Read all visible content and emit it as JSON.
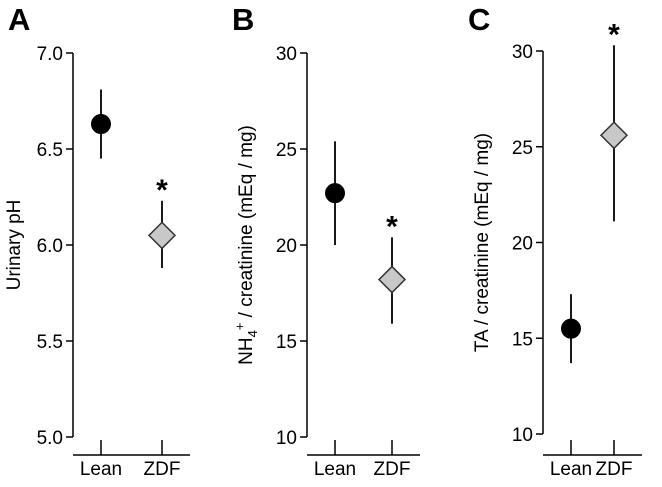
{
  "chart_data": [
    {
      "type": "scatter",
      "panel_letter": "A",
      "ylabel": "Urinary pH",
      "ylim": [
        5.0,
        7.0
      ],
      "yticks": [
        "5.0",
        "5.5",
        "6.0",
        "6.5",
        "7.0"
      ],
      "categories": [
        "Lean",
        "ZDF"
      ],
      "points": [
        {
          "category": "Lean",
          "value": 6.63,
          "err_low": 6.45,
          "err_high": 6.81,
          "marker": "circle",
          "fill": "#000000",
          "sig": ""
        },
        {
          "category": "ZDF",
          "value": 6.05,
          "err_low": 5.88,
          "err_high": 6.23,
          "marker": "diamond",
          "fill": "#c8c8c8",
          "sig": "*"
        }
      ]
    },
    {
      "type": "scatter",
      "panel_letter": "B",
      "ylabel": "NH4+ / creatinine (mEq / mg)",
      "ylabel_parts": {
        "pre": "NH",
        "sub": "4",
        "sup": "+",
        "post": " / creatinine (mEq / mg)"
      },
      "ylim": [
        10,
        30
      ],
      "yticks": [
        "10",
        "15",
        "20",
        "25",
        "30"
      ],
      "categories": [
        "Lean",
        "ZDF"
      ],
      "points": [
        {
          "category": "Lean",
          "value": 22.7,
          "err_low": 20.0,
          "err_high": 25.4,
          "marker": "circle",
          "fill": "#000000",
          "sig": ""
        },
        {
          "category": "ZDF",
          "value": 18.2,
          "err_low": 15.9,
          "err_high": 20.4,
          "marker": "diamond",
          "fill": "#c8c8c8",
          "sig": "*"
        }
      ]
    },
    {
      "type": "scatter",
      "panel_letter": "C",
      "ylabel": "TA  / creatinine (mEq / mg)",
      "ylim": [
        10,
        30
      ],
      "yticks": [
        "10",
        "15",
        "20",
        "25",
        "30"
      ],
      "categories": [
        "Lean",
        "ZDF"
      ],
      "points": [
        {
          "category": "Lean",
          "value": 15.5,
          "err_low": 13.7,
          "err_high": 17.3,
          "marker": "circle",
          "fill": "#000000",
          "sig": ""
        },
        {
          "category": "ZDF",
          "value": 25.6,
          "err_low": 21.1,
          "err_high": 30.3,
          "marker": "diamond",
          "fill": "#c8c8c8",
          "sig": "*"
        }
      ]
    }
  ]
}
